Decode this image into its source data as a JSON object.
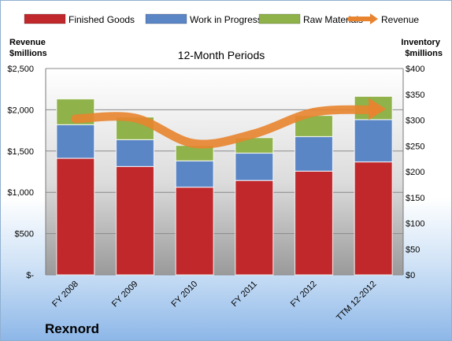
{
  "chart_data": {
    "type": "bar",
    "subtype": "stacked-bar-with-line",
    "title": "12-Month Periods",
    "company": "Rexnord",
    "categories": [
      "FY 2008",
      "FY 2009",
      "FY 2010",
      "FY 2011",
      "FY 2012",
      "TTM 12-2012"
    ],
    "series": [
      {
        "name": "Finished Goods",
        "axis": "right",
        "color": "#c0282c",
        "values": [
          226,
          210,
          170,
          183,
          201,
          219
        ]
      },
      {
        "name": "Work in Progress",
        "axis": "right",
        "color": "#5b86c6",
        "values": [
          65,
          52,
          51,
          53,
          67,
          82
        ]
      },
      {
        "name": "Raw Materials",
        "axis": "right",
        "color": "#8fb24a",
        "values": [
          50,
          44,
          30,
          30,
          41,
          45
        ]
      },
      {
        "name": "Revenue",
        "axis": "left",
        "type": "line",
        "color": "#e8842f",
        "values": [
          1890,
          1900,
          1590,
          1710,
          1970,
          2000
        ]
      }
    ],
    "ylabel_left": "Revenue\n$millions",
    "ylabel_right": "Inventory\n$millions",
    "ylim_left": [
      0,
      2500
    ],
    "ylim_right": [
      0,
      400
    ],
    "yticks_left": [
      "$-",
      "$500",
      "$1,000",
      "$1,500",
      "$2,000",
      "$2,500"
    ],
    "yticks_right": [
      "$0",
      "$50",
      "$100",
      "$150",
      "$200",
      "$250",
      "$300",
      "$350",
      "$400"
    ],
    "grid": true,
    "legend_position": "top"
  }
}
